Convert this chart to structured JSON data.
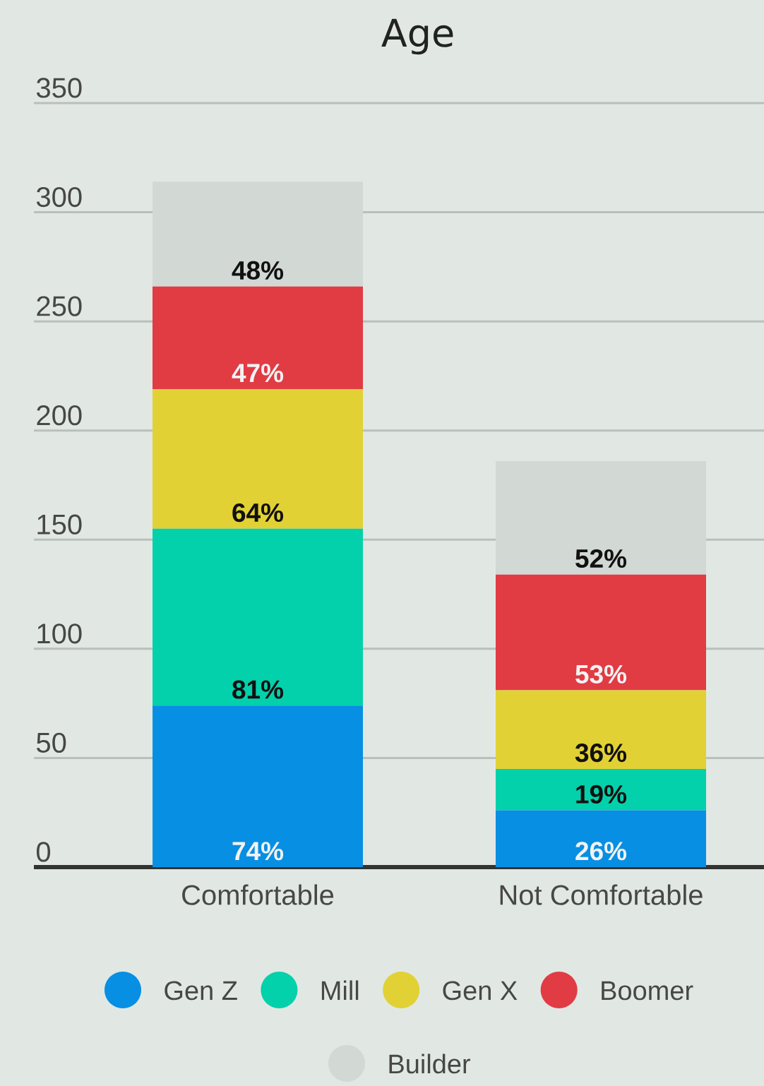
{
  "chart_data": {
    "type": "bar",
    "title": "Age",
    "categories": [
      "Comfortable",
      "Not Comfortable"
    ],
    "stacked": true,
    "series": [
      {
        "name": "Gen Z",
        "color": "#078fe3",
        "values": [
          74,
          26
        ],
        "value_labels": [
          "74%",
          "26%"
        ]
      },
      {
        "name": "Mill",
        "color": "#03d1ab",
        "values": [
          81,
          19
        ],
        "value_labels": [
          "81%",
          "19%"
        ]
      },
      {
        "name": "Gen X",
        "color": "#e2d134",
        "values": [
          64,
          36
        ],
        "value_labels": [
          "64%",
          "36%"
        ]
      },
      {
        "name": "Boomer",
        "color": "#e13b44",
        "values": [
          47,
          53
        ],
        "value_labels": [
          "47%",
          "53%"
        ]
      },
      {
        "name": "Builder",
        "color": "#d2d8d4",
        "values": [
          48,
          52
        ],
        "value_labels": [
          "48%",
          "52%"
        ]
      }
    ],
    "ylim": [
      0,
      350
    ],
    "yticks": [
      0,
      50,
      100,
      150,
      200,
      250,
      300,
      350
    ],
    "grid": "y",
    "legend": "bottom"
  }
}
